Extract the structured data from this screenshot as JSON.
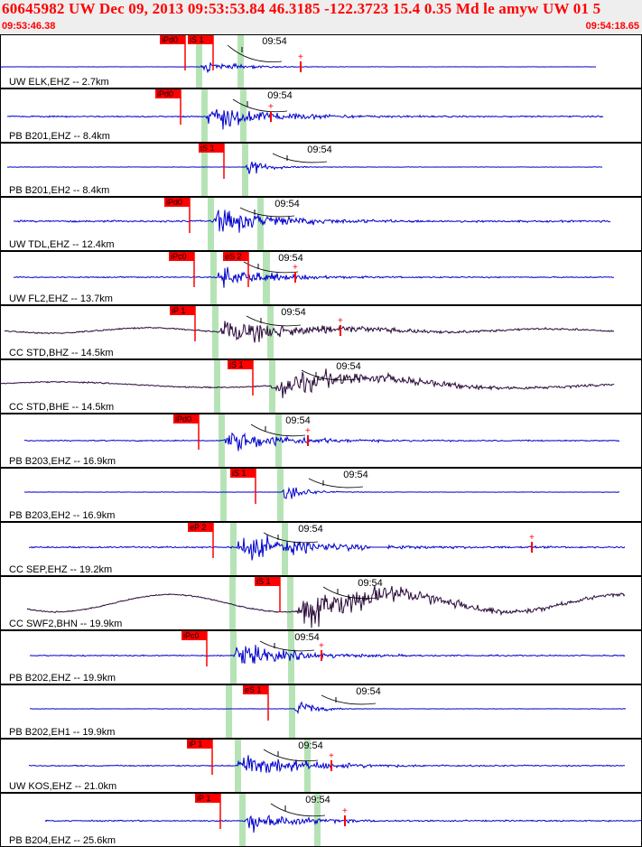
{
  "header": {
    "title": "60645982 UW Dec 09, 2013 09:53:53.84   46.3185 -122.3723 15.4 0.35 Md le amyw UW 01   5",
    "start_time": "09:53:46.38",
    "end_time": "09:54:18.65",
    "minute_label": "09:54"
  },
  "colors": {
    "trace_blue": "#0000cc",
    "trace_dark": "#2a0a3a",
    "pick_red": "#ff0000",
    "window_green": "#b6e3b6",
    "coda_line": "#000000"
  },
  "traces": [
    {
      "label": "UW ELK,EHZ -- 2.7km",
      "color": "blue",
      "picks": [
        {
          "name": "iPd0"
        },
        {
          "name": "iS 1"
        }
      ]
    },
    {
      "label": "PB B201,EHZ -- 8.4km",
      "color": "blue",
      "picks": [
        {
          "name": "iPd0"
        }
      ]
    },
    {
      "label": "PB B201,EH2 -- 8.4km",
      "color": "blue",
      "picks": [
        {
          "name": "iS 1"
        }
      ]
    },
    {
      "label": "UW TDL,EHZ -- 12.4km",
      "color": "blue",
      "picks": [
        {
          "name": "iPd0"
        }
      ]
    },
    {
      "label": "UW FL2,EHZ -- 13.7km",
      "color": "blue",
      "picks": [
        {
          "name": "iPc0"
        },
        {
          "name": "eS 2"
        }
      ]
    },
    {
      "label": "CC STD,BHZ -- 14.5km",
      "color": "dark",
      "picks": [
        {
          "name": "iP 1"
        }
      ]
    },
    {
      "label": "CC STD,BHE -- 14.5km",
      "color": "dark",
      "picks": [
        {
          "name": "iS 1"
        }
      ]
    },
    {
      "label": "PB B203,EHZ -- 16.9km",
      "color": "blue",
      "picks": [
        {
          "name": "iPd0"
        }
      ]
    },
    {
      "label": "PB B203,EH2 -- 16.9km",
      "color": "blue",
      "picks": [
        {
          "name": "iS 1"
        }
      ]
    },
    {
      "label": "CC SEP,EHZ -- 19.2km",
      "color": "blue",
      "picks": [
        {
          "name": "eP 2"
        }
      ]
    },
    {
      "label": "CC SWF2,BHN -- 19.9km",
      "color": "dark",
      "picks": [
        {
          "name": "iS 1"
        }
      ]
    },
    {
      "label": "PB B202,EHZ -- 19.9km",
      "color": "blue",
      "picks": [
        {
          "name": "iPc0"
        }
      ]
    },
    {
      "label": "PB B202,EH1 -- 19.9km",
      "color": "blue",
      "picks": [
        {
          "name": "eS 1"
        }
      ]
    },
    {
      "label": "UW KOS,EHZ -- 21.0km",
      "color": "blue",
      "picks": [
        {
          "name": "iP 1"
        }
      ]
    },
    {
      "label": "PB B204,EHZ -- 25.6km",
      "color": "blue",
      "picks": [
        {
          "name": "iP 1"
        }
      ]
    }
  ]
}
